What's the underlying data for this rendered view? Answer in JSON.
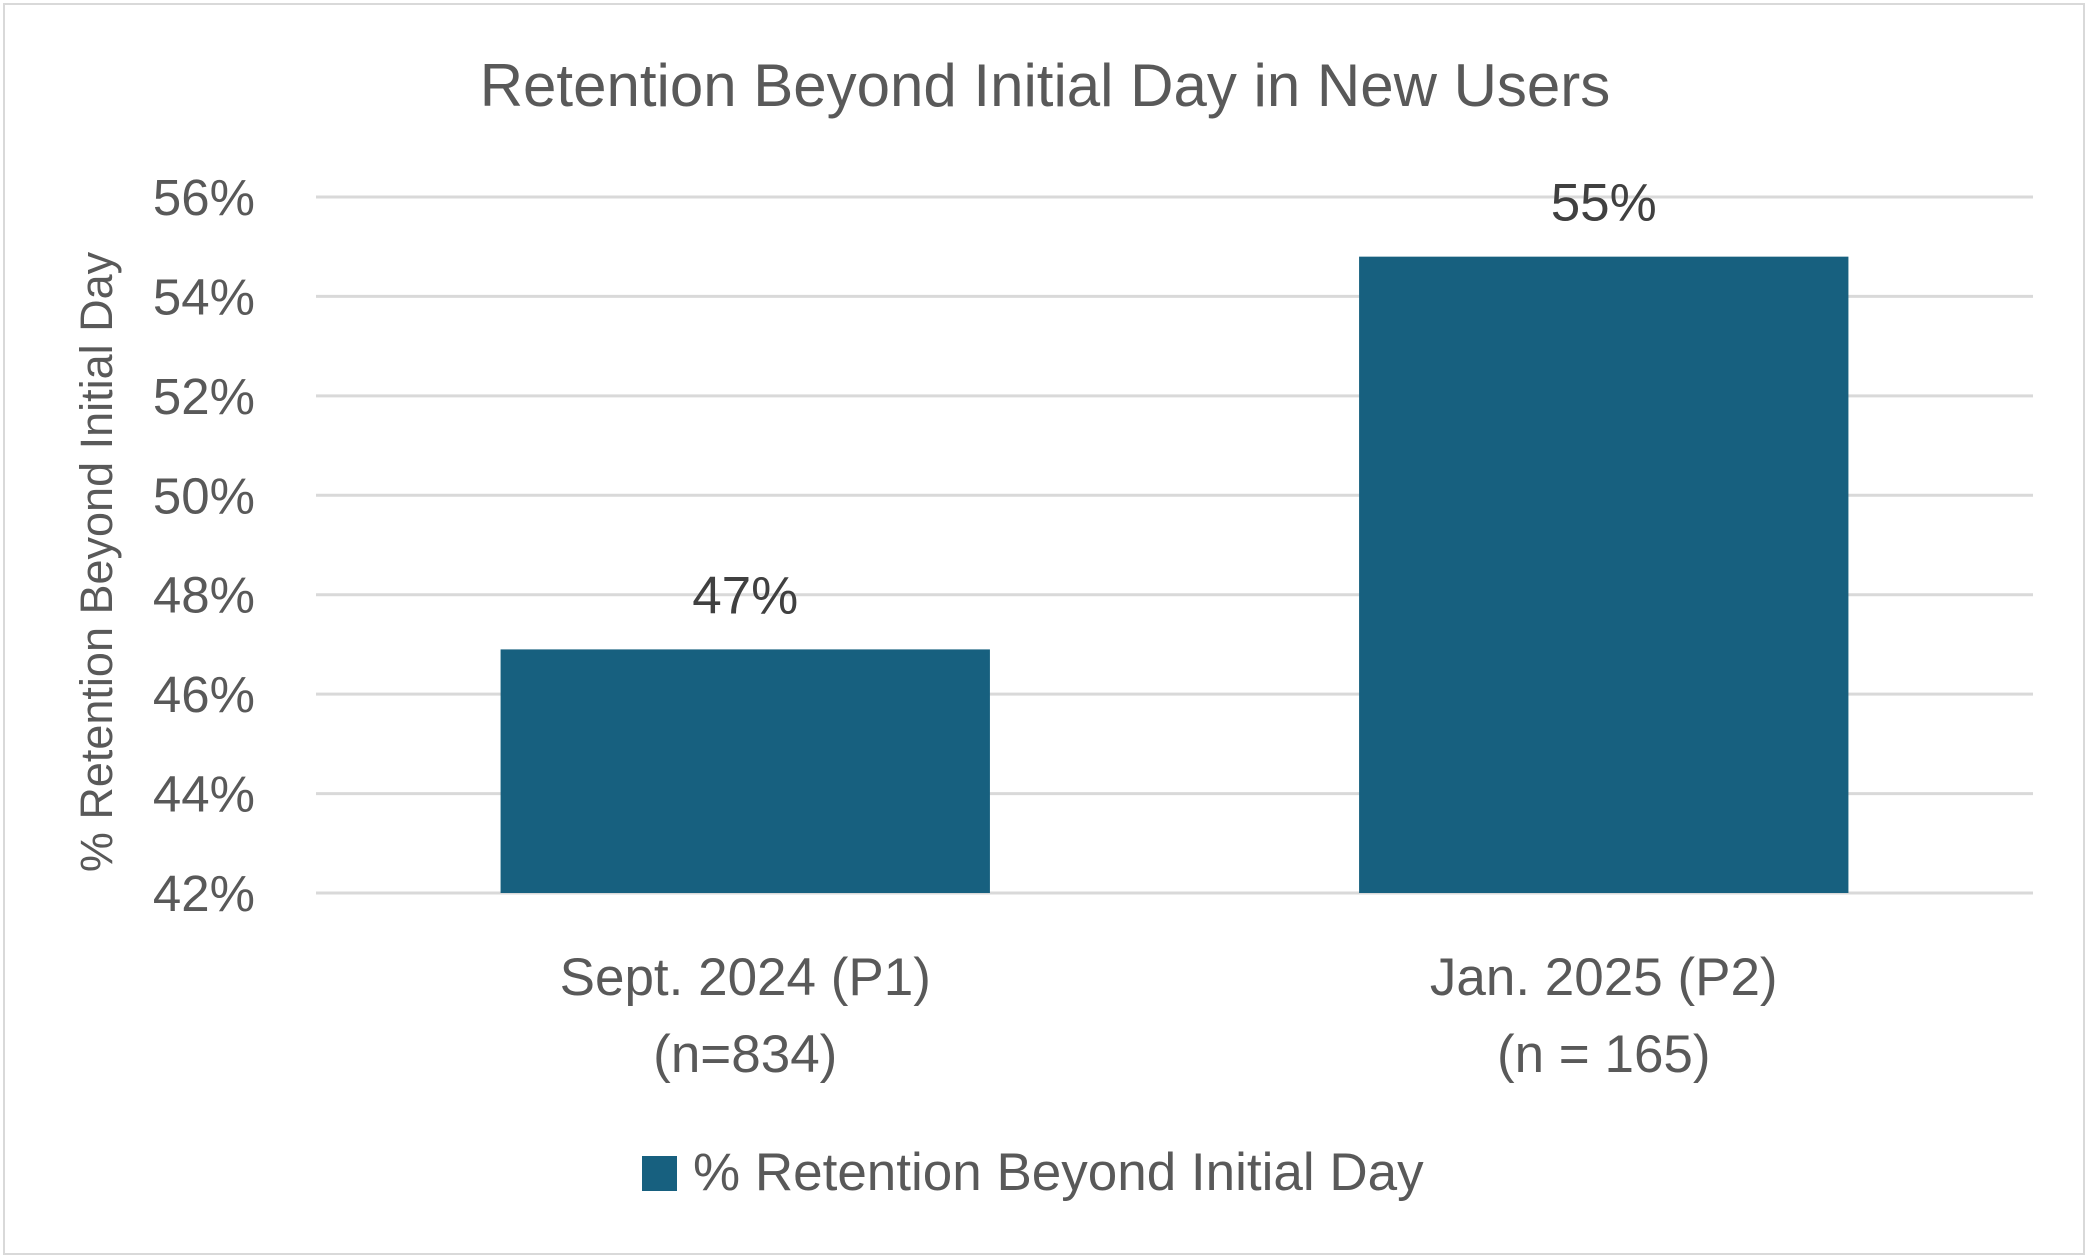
{
  "chart_data": {
    "type": "bar",
    "title": "Retention Beyond Initial Day in New Users",
    "ylabel": "% Retention Beyond Initial Day",
    "xlabel": "",
    "categories": [
      [
        "Sept. 2024 (P1)",
        "(n=834)"
      ],
      [
        "Jan. 2025 (P2)",
        "(n = 165)"
      ]
    ],
    "series": [
      {
        "name": "% Retention Beyond Initial Day",
        "values": [
          46.9,
          54.8
        ],
        "data_labels": [
          "47%",
          "55%"
        ],
        "color": "#17607f"
      }
    ],
    "ylim": [
      42,
      56
    ],
    "yticks": [
      42,
      44,
      46,
      48,
      50,
      52,
      54,
      56
    ],
    "ytick_labels": [
      "42%",
      "44%",
      "46%",
      "48%",
      "50%",
      "52%",
      "54%",
      "56%"
    ],
    "grid": true,
    "legend": "bottom"
  }
}
